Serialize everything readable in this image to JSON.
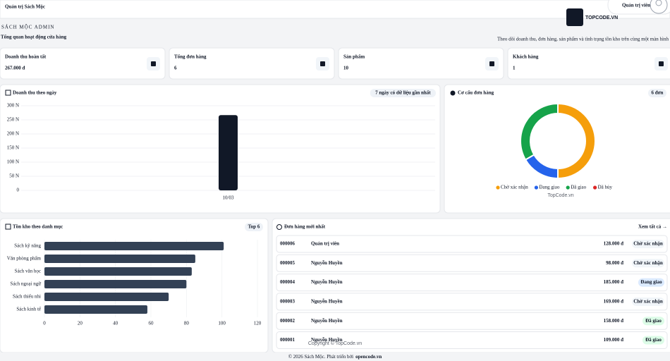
{
  "header": {
    "brand": "Quản trị Sách Mộc",
    "user": "Quản trị viên"
  },
  "page": {
    "eyebrow": "SÁCH MỘC ADMIN",
    "title": "Tổng quan hoạt động cửa hàng",
    "subtitle": "Theo dõi doanh thu, đơn hàng, sản phẩm và tình trạng tồn kho trên cùng một màn hình"
  },
  "stats": [
    {
      "label": "Doanh thu hoàn tất",
      "value": "267.000 đ"
    },
    {
      "label": "Tổng đơn hàng",
      "value": 6
    },
    {
      "label": "Sản phẩm",
      "value": 10
    },
    {
      "label": "Khách hàng",
      "value": 1
    }
  ],
  "chart_data": [
    {
      "type": "bar",
      "title": "Doanh thu theo ngày",
      "badge": "7 ngày có dữ liệu gần nhất",
      "categories": [
        "10/03"
      ],
      "values": [
        267
      ],
      "color": "#111827",
      "ylim": [
        0,
        300
      ],
      "yticks": [
        0,
        {
          "value": 50,
          "label": "50 N"
        },
        {
          "value": 100,
          "label": "100 N"
        },
        {
          "value": 150,
          "label": "150 N"
        },
        {
          "value": 200,
          "label": "200 N"
        },
        {
          "value": 250,
          "label": "250 N"
        },
        {
          "value": 300,
          "label": "300 N"
        }
      ],
      "grid": true
    },
    {
      "type": "pie",
      "title": "Cơ cấu đơn hàng",
      "badge": "6 đơn",
      "donut": true,
      "categories": [
        "Chờ xác nhận",
        "Đang giao",
        "Đã giao",
        "Đã hủy"
      ],
      "values": [
        3,
        1,
        2,
        0
      ],
      "colors": [
        "#f59e0b",
        "#2563eb",
        "#16a34a",
        "#dc2626"
      ],
      "legend": "bottom"
    },
    {
      "type": "barh",
      "title": "Tồn kho theo danh mục",
      "badge": "Top 6",
      "categories": [
        "Sách kỹ năng",
        "Văn phòng phẩm",
        "Sách văn học",
        "Sách ngoại ngữ",
        "Sách thiếu nhi",
        "Sách kinh tế"
      ],
      "values": [
        101,
        85,
        83,
        80,
        70,
        58
      ],
      "color": "#334155",
      "xlim": [
        0,
        120
      ],
      "xticks": [
        0,
        20,
        40,
        60,
        80,
        100,
        120
      ],
      "grid": true
    }
  ],
  "orders": {
    "title": "Đơn hàng mới nhất",
    "view_all": "Xem tất cả →",
    "rows": [
      [
        "000006",
        "Quản trị viên",
        "128.000 đ",
        "Chờ xác nhận"
      ],
      [
        "000005",
        "Nguyễn Huyền",
        "98.000 đ",
        "Chờ xác nhận"
      ],
      [
        "000004",
        "Nguyễn Huyền",
        "185.000 đ",
        "Đang giao"
      ],
      [
        "000003",
        "Nguyễn Huyền",
        "169.000 đ",
        "Chờ xác nhận"
      ],
      [
        "000002",
        "Nguyễn Huyền",
        "158.000 đ",
        "Đã giao"
      ],
      [
        "000001",
        "Nguyễn Huyền",
        "109.000 đ",
        "Đã giao"
      ]
    ]
  },
  "footer": {
    "text": "© 2026 Sách Mộc. Phát triển bởi",
    "link": "opencode.vn"
  },
  "watermarks": {
    "logo": "TOPCODE.VN",
    "center": "TopCode.vn",
    "copyright": "Copyright © TopCode.vn"
  }
}
